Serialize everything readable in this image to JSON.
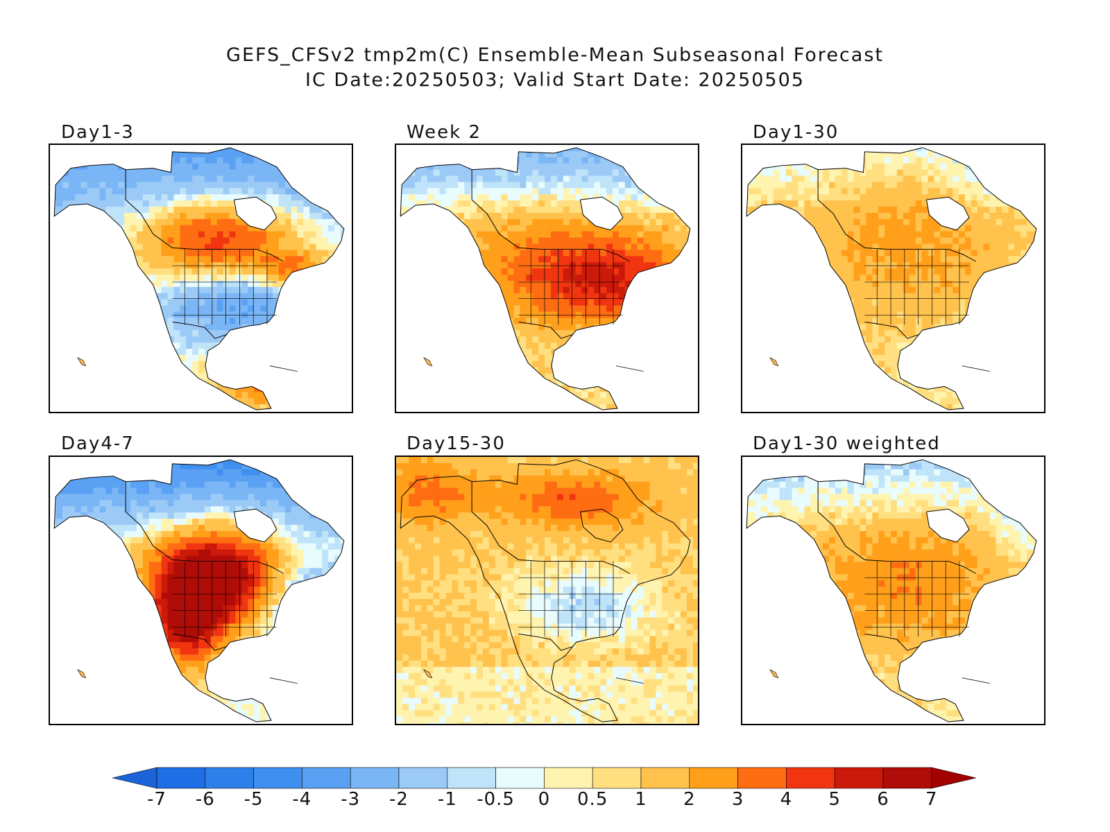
{
  "title": {
    "line1": "GEFS_CFSv2 tmp2m(C) Ensemble-Mean Subseasonal Forecast",
    "line2": "IC Date:20250503; Valid Start Date: 20250505"
  },
  "panels": [
    {
      "label": "Day1-3",
      "pattern": "warm-north-cold-south"
    },
    {
      "label": "Week 2",
      "pattern": "warm-central-cold-north"
    },
    {
      "label": "Day1-30",
      "pattern": "mild-warm"
    },
    {
      "label": "Day4-7",
      "pattern": "hot-west-cold-east"
    },
    {
      "label": "Day15-30",
      "pattern": "warm-north-cool-east"
    },
    {
      "label": "Day1-30 weighted",
      "pattern": "mild-warm-cool-arctic"
    }
  ],
  "legend": {
    "ticks": [
      "-7",
      "-6",
      "-5",
      "-4",
      "-3",
      "-2",
      "-1",
      "-0.5",
      "0",
      "0.5",
      "1",
      "2",
      "3",
      "4",
      "5",
      "6",
      "7"
    ],
    "colors": [
      "#1e6ee6",
      "#2d7fea",
      "#3f8ff0",
      "#5aa1f3",
      "#7ab6f6",
      "#9ccaf7",
      "#bfe4f9",
      "#e8fbfd",
      "#fff3b0",
      "#ffdf80",
      "#ffc24d",
      "#ff9f1a",
      "#ff6d12",
      "#f03510",
      "#cc1a0a",
      "#b00c08"
    ],
    "low_arrow_color": "#1a63d8",
    "high_arrow_color": "#a30000"
  }
}
